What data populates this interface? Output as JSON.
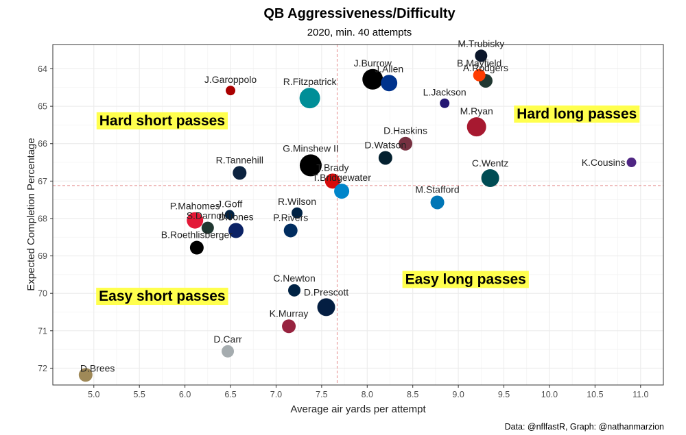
{
  "chart_data": {
    "type": "scatter",
    "title": "QB Aggressiveness/Difficulty",
    "subtitle": "2020, min. 40 attempts",
    "xlabel": "Average air yards per attempt",
    "ylabel": "Expected Completion Percentage",
    "caption": "Data: @nflfastR, Graph: @nathanmarzion",
    "xlim": [
      4.55,
      11.25
    ],
    "ylim": [
      63.35,
      72.45
    ],
    "y_reversed": true,
    "grid": true,
    "x_ticks": [
      "5.0",
      "5.5",
      "6.0",
      "6.5",
      "7.0",
      "7.5",
      "8.0",
      "8.5",
      "9.0",
      "9.5",
      "10.0",
      "10.5",
      "11.0"
    ],
    "y_ticks": [
      "64",
      "65",
      "66",
      "67",
      "68",
      "69",
      "70",
      "71",
      "72"
    ],
    "reference_lines": {
      "x": 7.67,
      "y": 67.12,
      "color": "#e48a8a"
    },
    "quadrant_labels": [
      {
        "text": "Hard short passes",
        "x": 5.75,
        "y": 65.38
      },
      {
        "text": "Hard long passes",
        "x": 10.3,
        "y": 65.2
      },
      {
        "text": "Easy short passes",
        "x": 5.75,
        "y": 70.07
      },
      {
        "text": "Easy long passes",
        "x": 9.08,
        "y": 69.62
      }
    ],
    "points": [
      {
        "name": "M.Trubisky",
        "x": 9.25,
        "y": 63.65,
        "size": 9,
        "color": "#0b162a"
      },
      {
        "name": "B.Mayfield",
        "x": 9.23,
        "y": 64.17,
        "size": 9,
        "color": "#ff3c00"
      },
      {
        "name": "A.Rodgers",
        "x": 9.3,
        "y": 64.32,
        "size": 10,
        "color": "#203731"
      },
      {
        "name": "J.Burrow",
        "x": 8.06,
        "y": 64.28,
        "size": 15,
        "color": "#000000"
      },
      {
        "name": "J.Allen",
        "x": 8.24,
        "y": 64.38,
        "size": 12,
        "color": "#00338d"
      },
      {
        "name": "J.Garoppolo",
        "x": 6.5,
        "y": 64.58,
        "size": 7,
        "color": "#aa0000"
      },
      {
        "name": "R.Fitzpatrick",
        "x": 7.37,
        "y": 64.78,
        "size": 15,
        "color": "#008e97"
      },
      {
        "name": "L.Jackson",
        "x": 8.85,
        "y": 64.92,
        "size": 7,
        "color": "#241773"
      },
      {
        "name": "M.Ryan",
        "x": 9.2,
        "y": 65.55,
        "size": 14,
        "color": "#a71930"
      },
      {
        "name": "D.Haskins",
        "x": 8.42,
        "y": 66.0,
        "size": 10,
        "color": "#773141"
      },
      {
        "name": "D.Watson",
        "x": 8.2,
        "y": 66.38,
        "size": 10,
        "color": "#03202f"
      },
      {
        "name": "G.Minshew II",
        "x": 7.38,
        "y": 66.58,
        "size": 16,
        "color": "#000000"
      },
      {
        "name": "K.Cousins",
        "x": 10.9,
        "y": 66.5,
        "size": 7,
        "color": "#4f2683"
      },
      {
        "name": "R.Tannehill",
        "x": 6.6,
        "y": 66.78,
        "size": 10,
        "color": "#0c2340"
      },
      {
        "name": "C.Wentz",
        "x": 9.35,
        "y": 66.92,
        "size": 13,
        "color": "#004c54"
      },
      {
        "name": "T.Brady",
        "x": 7.62,
        "y": 67.0,
        "size": 11,
        "color": "#d50a0a"
      },
      {
        "name": "T.Bridgewater",
        "x": 7.72,
        "y": 67.27,
        "size": 11,
        "color": "#0085ca"
      },
      {
        "name": "M.Stafford",
        "x": 8.77,
        "y": 67.57,
        "size": 10,
        "color": "#0076b6"
      },
      {
        "name": "J.Goff",
        "x": 6.49,
        "y": 67.9,
        "size": 7,
        "color": "#002244"
      },
      {
        "name": "R.Wilson",
        "x": 7.23,
        "y": 67.85,
        "size": 8,
        "color": "#002244"
      },
      {
        "name": "P.Mahomes",
        "x": 6.11,
        "y": 68.05,
        "size": 12,
        "color": "#e31837"
      },
      {
        "name": "S.Darnold",
        "x": 6.25,
        "y": 68.25,
        "size": 9,
        "color": "#203731"
      },
      {
        "name": "P.Rivers",
        "x": 7.16,
        "y": 68.32,
        "size": 10,
        "color": "#002c5f"
      },
      {
        "name": "D.Jones",
        "x": 6.56,
        "y": 68.32,
        "size": 11,
        "color": "#0b2265"
      },
      {
        "name": "B.Roethlisberger",
        "x": 6.13,
        "y": 68.78,
        "size": 10,
        "color": "#000000"
      },
      {
        "name": "C.Newton",
        "x": 7.2,
        "y": 69.92,
        "size": 9,
        "color": "#002244"
      },
      {
        "name": "D.Prescott",
        "x": 7.55,
        "y": 70.37,
        "size": 13,
        "color": "#041e42"
      },
      {
        "name": "K.Murray",
        "x": 7.14,
        "y": 70.88,
        "size": 10,
        "color": "#97233f"
      },
      {
        "name": "D.Carr",
        "x": 6.47,
        "y": 71.55,
        "size": 9,
        "color": "#a5acaf"
      },
      {
        "name": "D.Brees",
        "x": 4.91,
        "y": 72.18,
        "size": 10,
        "color": "#9f8958"
      }
    ]
  }
}
